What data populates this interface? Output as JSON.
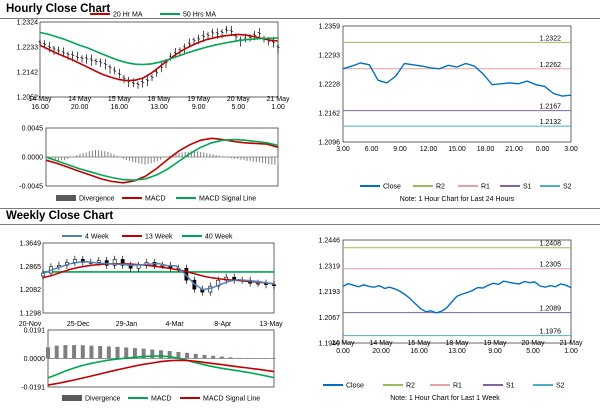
{
  "sections": {
    "hourly_title": "Hourly Close Chart",
    "weekly_title": "Weekly Close Chart"
  },
  "colors": {
    "ma_red": "#c00000",
    "ma_green": "#00a651",
    "ma_blue": "#4f81bd",
    "close_blue": "#0070c0",
    "r2_green": "#9bbb59",
    "r1_pink": "#e6a0a0",
    "s1_purple": "#8064a2",
    "s2_cyan": "#4bacc6",
    "histogram": "#7f7f7f"
  },
  "chart_data": [
    {
      "id": "hourly-price",
      "type": "line",
      "x_ticks": [
        [
          "14 May",
          "16.00"
        ],
        [
          "14 May",
          "20.00"
        ],
        [
          "15 May",
          "16.00"
        ],
        [
          "18 May",
          "13.00"
        ],
        [
          "19 May",
          "9.00"
        ],
        [
          "20 May",
          "5.00"
        ],
        [
          "21 May",
          "1.00"
        ]
      ],
      "y_ticks": [
        "1.2324",
        "1.2233",
        "1.2142",
        "1.2052"
      ],
      "ylim": [
        1.2052,
        1.2324
      ],
      "legend": [
        "20 Hr MA",
        "50 Hrs MA"
      ],
      "series": [
        {
          "name": "Price",
          "kind": "ohlc",
          "values": [
            1.2248,
            1.2242,
            1.2232,
            1.2226,
            1.2219,
            1.2212,
            1.2205,
            1.2202,
            1.2196,
            1.2192,
            1.219,
            1.2186,
            1.218,
            1.2176,
            1.217,
            1.2158,
            1.2146,
            1.2134,
            1.212,
            1.2109,
            1.21,
            1.2097,
            1.2104,
            1.2112,
            1.2122,
            1.214,
            1.216,
            1.2178,
            1.2196,
            1.221,
            1.222,
            1.223,
            1.2244,
            1.2256,
            1.2262,
            1.2272,
            1.2276,
            1.2284,
            1.2281,
            1.2286,
            1.2294,
            1.229,
            1.227,
            1.2256,
            1.2262,
            1.2268,
            1.2276,
            1.2282,
            1.2262,
            1.2254,
            1.2249,
            1.2232
          ]
        },
        {
          "name": "20 Hr MA",
          "values": [
            1.224,
            1.2226,
            1.2212,
            1.22,
            1.2188,
            1.2174,
            1.216,
            1.2146,
            1.2133,
            1.2123,
            1.2115,
            1.2111,
            1.2113,
            1.2121,
            1.2138,
            1.216,
            1.2183,
            1.2204,
            1.2222,
            1.2237,
            1.225,
            1.226,
            1.2267,
            1.2273,
            1.2276,
            1.2279,
            1.2276,
            1.2271,
            1.2264,
            1.2258,
            1.2255
          ]
        },
        {
          "name": "50 Hrs MA",
          "values": [
            1.2286,
            1.228,
            1.2271,
            1.2262,
            1.2251,
            1.224,
            1.223,
            1.2218,
            1.2206,
            1.2194,
            1.2184,
            1.2176,
            1.2171,
            1.217,
            1.2172,
            1.2178,
            1.2186,
            1.2196,
            1.2206,
            1.2216,
            1.2225,
            1.2233,
            1.224,
            1.2246,
            1.2251,
            1.2256,
            1.226,
            1.2262,
            1.2264,
            1.2265,
            1.2266
          ]
        }
      ]
    },
    {
      "id": "hourly-macd",
      "type": "line",
      "y_ticks": [
        "0.0045",
        "0.0000",
        "-0.0045"
      ],
      "ylim": [
        -0.0045,
        0.0045
      ],
      "legend": [
        "Divergence",
        "MACD",
        "MACD Signal Line"
      ],
      "series": [
        {
          "name": "Divergence",
          "kind": "bars",
          "values": [
            -0.0003,
            -0.0004,
            -0.0005,
            -0.0006,
            -0.0006,
            -0.0005,
            -0.0005,
            -0.0003,
            -0.0001,
            0.0001,
            0.0003,
            0.0005,
            0.0006,
            0.0007,
            0.0009,
            0.001,
            0.0011,
            0.0011,
            0.001,
            0.0009,
            0.0008,
            0.0006,
            0.0004,
            0.0002,
            0.0,
            -0.0003,
            -0.0005,
            -0.0006,
            -0.0008,
            -0.0009,
            -0.001,
            -0.0011,
            -0.0012,
            -0.0011,
            -0.001,
            -0.0008,
            -0.0006,
            -0.0004,
            -0.0001,
            0.0001,
            0.0002,
            0.0004,
            0.0005,
            0.0006,
            0.0007,
            0.0008,
            0.0008,
            0.0009,
            0.0009,
            0.0009,
            0.0008,
            0.0007,
            0.0006,
            0.0005,
            0.0004,
            0.0003,
            0.0002,
            0.0001,
            0.0,
            -0.0001,
            -0.0002,
            -0.0003,
            -0.0003,
            -0.0004,
            -0.0005,
            -0.0006,
            -0.0006,
            -0.0007,
            -0.0008,
            -0.0008,
            -0.0009,
            -0.001,
            -0.0011,
            -0.0012,
            -0.0012,
            -0.0013
          ]
        },
        {
          "name": "MACD",
          "values": [
            -0.0005,
            -0.001,
            -0.0016,
            -0.0022,
            -0.0028,
            -0.0034,
            -0.0038,
            -0.004,
            -0.0037,
            -0.003,
            -0.0018,
            -0.0004,
            0.0009,
            0.0019,
            0.0026,
            0.0029,
            0.0027,
            0.0024,
            0.0022,
            0.0021,
            0.002,
            0.0015
          ]
        },
        {
          "name": "MACD Signal Line",
          "values": [
            0.0,
            -0.0006,
            -0.0012,
            -0.0018,
            -0.0023,
            -0.0028,
            -0.0032,
            -0.0035,
            -0.0036,
            -0.0034,
            -0.0028,
            -0.0019,
            -0.0007,
            0.0005,
            0.0015,
            0.0022,
            0.0026,
            0.0027,
            0.0026,
            0.0024,
            0.0022,
            0.0018
          ]
        }
      ]
    },
    {
      "id": "hourly-close",
      "type": "line",
      "x_ticks": [
        "3.00",
        "6.00",
        "9.00",
        "12.00",
        "15.00",
        "18.00",
        "21.00",
        "0.00",
        "3.00"
      ],
      "y_ticks": [
        "1.2359",
        "1.2293",
        "1.2228",
        "1.2162",
        "1.2096"
      ],
      "ylim": [
        1.2096,
        1.2359
      ],
      "legend": [
        "Close",
        "R2",
        "R1",
        "S1",
        "S2"
      ],
      "note": "Note: 1 Hour Chart for Last 24 Hours",
      "levels": [
        {
          "name": "R2",
          "label": "1.2322",
          "value": 1.2322
        },
        {
          "name": "R1",
          "label": "1.2262",
          "value": 1.2262
        },
        {
          "name": "S1",
          "label": "1.2167",
          "value": 1.2167
        },
        {
          "name": "S2",
          "label": "1.2132",
          "value": 1.2132
        }
      ],
      "series": [
        {
          "name": "Close",
          "values": [
            1.2262,
            1.2268,
            1.2275,
            1.2271,
            1.2236,
            1.223,
            1.2245,
            1.2274,
            1.2271,
            1.2268,
            1.2264,
            1.2262,
            1.227,
            1.2266,
            1.2274,
            1.2268,
            1.225,
            1.2226,
            1.2228,
            1.223,
            1.2228,
            1.2234,
            1.2226,
            1.2222,
            1.2206,
            1.22,
            1.2202
          ]
        }
      ]
    },
    {
      "id": "weekly-price",
      "type": "line",
      "x_ticks": [
        "20-Nov",
        "25-Dec",
        "29-Jan",
        "4-Mar",
        "8-Apr",
        "13-May"
      ],
      "y_ticks": [
        "1.3649",
        "1.2865",
        "1.2082",
        "1.1298"
      ],
      "ylim": [
        1.1298,
        1.3649
      ],
      "legend": [
        "4 Week",
        "13 Week",
        "40 Week"
      ],
      "series": [
        {
          "name": "Price",
          "kind": "candles",
          "values": [
            1.264,
            1.285,
            1.29,
            1.3,
            1.31,
            1.3,
            1.3,
            1.306,
            1.29,
            1.31,
            1.29,
            1.28,
            1.29,
            1.3,
            1.29,
            1.29,
            1.28,
            1.28,
            1.24,
            1.21,
            1.2,
            1.22,
            1.24,
            1.25,
            1.24,
            1.24,
            1.23,
            1.23,
            1.225,
            1.222
          ]
        },
        {
          "name": "4 Week",
          "values": [
            1.262,
            1.275,
            1.285,
            1.295,
            1.3,
            1.302,
            1.298,
            1.296,
            1.294,
            1.293,
            1.29,
            1.292,
            1.294,
            1.296,
            1.289,
            1.288,
            1.26,
            1.228,
            1.208,
            1.214,
            1.226,
            1.237,
            1.242,
            1.239,
            1.236,
            1.232,
            1.227
          ]
        },
        {
          "name": "13 Week",
          "values": [
            1.248,
            1.256,
            1.266,
            1.276,
            1.283,
            1.288,
            1.292,
            1.294,
            1.295,
            1.295,
            1.294,
            1.292,
            1.289,
            1.285,
            1.281,
            1.276,
            1.27,
            1.262,
            1.254,
            1.248,
            1.244,
            1.241,
            1.239,
            1.236,
            1.234,
            1.231,
            1.228
          ]
        },
        {
          "name": "40 Week",
          "values": [
            1.268,
            1.268
          ]
        }
      ]
    },
    {
      "id": "weekly-macd",
      "type": "line",
      "y_ticks": [
        "0.0191",
        "0.0000",
        "-0.0191"
      ],
      "ylim": [
        -0.0191,
        0.0191
      ],
      "legend": [
        "Divergence",
        "MACD",
        "MACD Signal Line"
      ],
      "series": [
        {
          "name": "Divergence",
          "kind": "bars",
          "values": [
            0.0075,
            0.0086,
            0.009,
            0.009,
            0.0089,
            0.0086,
            0.0084,
            0.0081,
            0.0078,
            0.0074,
            0.007,
            0.0066,
            0.006,
            0.0055,
            0.005,
            0.0044,
            0.0038,
            0.0031,
            0.0024,
            0.0018,
            0.0013,
            0.0008,
            0.0004,
            0.0002,
            0.0001,
            0.0,
            0.0
          ]
        },
        {
          "name": "MACD",
          "values": [
            -0.013,
            -0.0108,
            -0.0084,
            -0.0064,
            -0.0046,
            -0.0032,
            -0.0021,
            -0.0011,
            -0.0004,
            0.0003,
            0.0008,
            0.0013,
            0.0016,
            0.0016,
            0.0012,
            0.0002,
            -0.0012,
            -0.0028,
            -0.0042,
            -0.0055,
            -0.0066,
            -0.0075,
            -0.0084,
            -0.0093,
            -0.0104,
            -0.0116,
            -0.0128
          ]
        },
        {
          "name": "MACD Signal Line",
          "values": [
            -0.0178,
            -0.0168,
            -0.0156,
            -0.0144,
            -0.0131,
            -0.0117,
            -0.0103,
            -0.0089,
            -0.0076,
            -0.0063,
            -0.005,
            -0.0039,
            -0.003,
            -0.0021,
            -0.0015,
            -0.0012,
            -0.0014,
            -0.0019,
            -0.0026,
            -0.0034,
            -0.0041,
            -0.0049,
            -0.0056,
            -0.0064,
            -0.0071,
            -0.0079,
            -0.0088
          ]
        }
      ]
    },
    {
      "id": "weekly-close",
      "type": "line",
      "x_ticks": [
        [
          "14 May",
          "0.00"
        ],
        [
          "14 May",
          "20.00"
        ],
        [
          "15 May",
          "16.00"
        ],
        [
          "18 May",
          "13.00"
        ],
        [
          "19 May",
          "9.00"
        ],
        [
          "20 May",
          "5.00"
        ],
        [
          "21 May",
          "1.00"
        ]
      ],
      "y_ticks": [
        "1.2446",
        "1.2319",
        "1.2193",
        "1.2067",
        "1.1940"
      ],
      "ylim": [
        1.194,
        1.2446
      ],
      "legend": [
        "Close",
        "R2",
        "R1",
        "S1",
        "S2"
      ],
      "note": "Note: 1 Hour Chart for Last 1 Week",
      "levels": [
        {
          "name": "R2",
          "label": "1.2408",
          "value": 1.2408
        },
        {
          "name": "R1",
          "label": "1.2305",
          "value": 1.2305
        },
        {
          "name": "S1",
          "label": "1.2089",
          "value": 1.2089
        },
        {
          "name": "S2",
          "label": "1.1976",
          "value": 1.1976
        }
      ],
      "series": [
        {
          "name": "Close",
          "values": [
            1.2218,
            1.2232,
            1.2224,
            1.2216,
            1.2226,
            1.2218,
            1.2214,
            1.2222,
            1.2208,
            1.2214,
            1.2206,
            1.2194,
            1.2178,
            1.2156,
            1.2132,
            1.2108,
            1.2094,
            1.2098,
            1.2088,
            1.2096,
            1.2112,
            1.2142,
            1.217,
            1.218,
            1.2188,
            1.2198,
            1.2212,
            1.221,
            1.2224,
            1.2234,
            1.2228,
            1.2244,
            1.2238,
            1.2234,
            1.223,
            1.2242,
            1.2236,
            1.224,
            1.222,
            1.2214,
            1.2222,
            1.2216,
            1.223,
            1.2224,
            1.2212
          ]
        }
      ]
    }
  ]
}
